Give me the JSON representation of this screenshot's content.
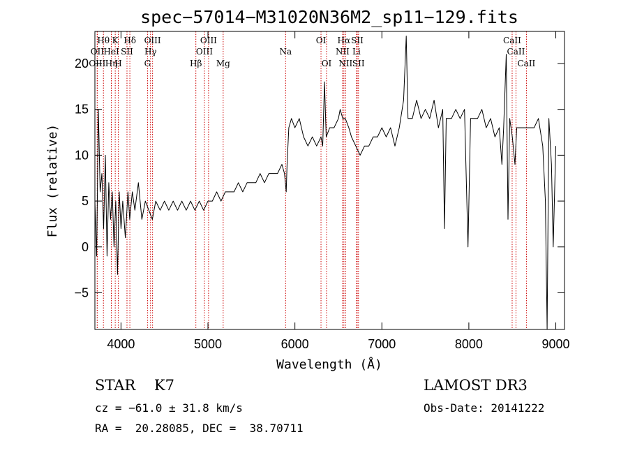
{
  "chart_data": {
    "type": "line",
    "title": "spec−57014−M31020N36M2_sp11−129.fits",
    "xlabel": "Wavelength (Å)",
    "ylabel": "Flux (relative)",
    "xlim": [
      3700,
      9100
    ],
    "ylim": [
      -9,
      23.5
    ],
    "x_ticks": [
      {
        "value": 4000,
        "label": "4000"
      },
      {
        "value": 5000,
        "label": "5000"
      },
      {
        "value": 6000,
        "label": "6000"
      },
      {
        "value": 7000,
        "label": "7000"
      },
      {
        "value": 8000,
        "label": "8000"
      },
      {
        "value": 9000,
        "label": "9000"
      }
    ],
    "y_ticks": [
      {
        "value": -5,
        "label": "−5"
      },
      {
        "value": 0,
        "label": "0"
      },
      {
        "value": 5,
        "label": "5"
      },
      {
        "value": 10,
        "label": "10"
      },
      {
        "value": 15,
        "label": "15"
      },
      {
        "value": 20,
        "label": "20"
      }
    ],
    "series": [
      {
        "name": "flux",
        "points": [
          [
            3700,
            5
          ],
          [
            3720,
            -1
          ],
          [
            3740,
            15
          ],
          [
            3760,
            6
          ],
          [
            3780,
            8
          ],
          [
            3800,
            2
          ],
          [
            3820,
            10
          ],
          [
            3840,
            -1
          ],
          [
            3860,
            7
          ],
          [
            3880,
            3
          ],
          [
            3900,
            6
          ],
          [
            3920,
            0
          ],
          [
            3940,
            5
          ],
          [
            3960,
            -3
          ],
          [
            3980,
            6
          ],
          [
            4000,
            2
          ],
          [
            4020,
            5
          ],
          [
            4050,
            1
          ],
          [
            4080,
            6
          ],
          [
            4100,
            3
          ],
          [
            4130,
            6
          ],
          [
            4160,
            4
          ],
          [
            4200,
            7
          ],
          [
            4240,
            3
          ],
          [
            4280,
            5
          ],
          [
            4320,
            4
          ],
          [
            4360,
            3
          ],
          [
            4400,
            5
          ],
          [
            4450,
            4
          ],
          [
            4500,
            5
          ],
          [
            4550,
            4
          ],
          [
            4600,
            5
          ],
          [
            4650,
            4
          ],
          [
            4700,
            5
          ],
          [
            4750,
            4
          ],
          [
            4800,
            5
          ],
          [
            4850,
            4
          ],
          [
            4900,
            5
          ],
          [
            4950,
            4
          ],
          [
            5000,
            5
          ],
          [
            5050,
            5
          ],
          [
            5100,
            6
          ],
          [
            5150,
            5
          ],
          [
            5200,
            6
          ],
          [
            5250,
            6
          ],
          [
            5300,
            6
          ],
          [
            5350,
            7
          ],
          [
            5400,
            6
          ],
          [
            5450,
            7
          ],
          [
            5500,
            7
          ],
          [
            5550,
            7
          ],
          [
            5600,
            8
          ],
          [
            5650,
            7
          ],
          [
            5700,
            8
          ],
          [
            5750,
            8
          ],
          [
            5800,
            8
          ],
          [
            5850,
            9
          ],
          [
            5880,
            8
          ],
          [
            5900,
            6
          ],
          [
            5910,
            9
          ],
          [
            5930,
            13
          ],
          [
            5960,
            14
          ],
          [
            6000,
            13
          ],
          [
            6050,
            14
          ],
          [
            6100,
            12
          ],
          [
            6150,
            11
          ],
          [
            6200,
            12
          ],
          [
            6250,
            11
          ],
          [
            6300,
            12
          ],
          [
            6320,
            11
          ],
          [
            6340,
            18
          ],
          [
            6360,
            12
          ],
          [
            6400,
            13
          ],
          [
            6450,
            13
          ],
          [
            6500,
            14
          ],
          [
            6520,
            15
          ],
          [
            6550,
            14
          ],
          [
            6580,
            14
          ],
          [
            6620,
            13
          ],
          [
            6650,
            12
          ],
          [
            6700,
            11
          ],
          [
            6750,
            10
          ],
          [
            6800,
            11
          ],
          [
            6850,
            11
          ],
          [
            6900,
            12
          ],
          [
            6950,
            12
          ],
          [
            7000,
            13
          ],
          [
            7050,
            12
          ],
          [
            7100,
            13
          ],
          [
            7150,
            11
          ],
          [
            7200,
            13
          ],
          [
            7250,
            16
          ],
          [
            7280,
            23
          ],
          [
            7300,
            14
          ],
          [
            7350,
            14
          ],
          [
            7400,
            16
          ],
          [
            7450,
            14
          ],
          [
            7500,
            15
          ],
          [
            7550,
            14
          ],
          [
            7600,
            16
          ],
          [
            7650,
            13
          ],
          [
            7700,
            15
          ],
          [
            7720,
            2
          ],
          [
            7740,
            14
          ],
          [
            7800,
            14
          ],
          [
            7850,
            15
          ],
          [
            7900,
            14
          ],
          [
            7950,
            15
          ],
          [
            7990,
            0
          ],
          [
            8020,
            14
          ],
          [
            8100,
            14
          ],
          [
            8150,
            15
          ],
          [
            8200,
            13
          ],
          [
            8250,
            14
          ],
          [
            8300,
            12
          ],
          [
            8350,
            13
          ],
          [
            8380,
            9
          ],
          [
            8400,
            13
          ],
          [
            8430,
            21
          ],
          [
            8450,
            3
          ],
          [
            8470,
            14
          ],
          [
            8500,
            12
          ],
          [
            8530,
            9
          ],
          [
            8550,
            13
          ],
          [
            8600,
            13
          ],
          [
            8650,
            13
          ],
          [
            8700,
            13
          ],
          [
            8750,
            13
          ],
          [
            8800,
            14
          ],
          [
            8850,
            11
          ],
          [
            8880,
            5
          ],
          [
            8900,
            -9
          ],
          [
            8920,
            14
          ],
          [
            8950,
            9
          ],
          [
            8970,
            0
          ],
          [
            9000,
            11
          ]
        ]
      }
    ],
    "spectral_lines": [
      {
        "label": "Hθ",
        "wavelength": 3798,
        "row": 0
      },
      {
        "label": "OII",
        "wavelength": 3727,
        "row": 1
      },
      {
        "label": "OIII",
        "wavelength": 3727,
        "row": 2
      },
      {
        "label": "K",
        "wavelength": 3934,
        "row": 0
      },
      {
        "label": "HeI",
        "wavelength": 3889,
        "row": 1
      },
      {
        "label": "Hη",
        "wavelength": 3889,
        "row": 2
      },
      {
        "label": "SII",
        "wavelength": 4069,
        "row": 1
      },
      {
        "label": "H",
        "wavelength": 3969,
        "row": 2
      },
      {
        "label": "Hδ",
        "wavelength": 4102,
        "row": 0
      },
      {
        "label": "OIII",
        "wavelength": 4363,
        "row": 0
      },
      {
        "label": "Hγ",
        "wavelength": 4340,
        "row": 1
      },
      {
        "label": "G",
        "wavelength": 4305,
        "row": 2
      },
      {
        "label": "Hβ",
        "wavelength": 4861,
        "row": 2
      },
      {
        "label": "OIII",
        "wavelength": 5007,
        "row": 0
      },
      {
        "label": "OIII",
        "wavelength": 4959,
        "row": 1
      },
      {
        "label": "Mg",
        "wavelength": 5175,
        "row": 2
      },
      {
        "label": "Na",
        "wavelength": 5893,
        "row": 1
      },
      {
        "label": "OI",
        "wavelength": 6300,
        "row": 0
      },
      {
        "label": "OI",
        "wavelength": 6364,
        "row": 2
      },
      {
        "label": "Hα",
        "wavelength": 6563,
        "row": 0
      },
      {
        "label": "SII",
        "wavelength": 6717,
        "row": 0
      },
      {
        "label": "NII",
        "wavelength": 6548,
        "row": 1
      },
      {
        "label": "Li",
        "wavelength": 6708,
        "row": 1
      },
      {
        "label": "NII",
        "wavelength": 6583,
        "row": 2
      },
      {
        "label": "SII",
        "wavelength": 6731,
        "row": 2
      },
      {
        "label": "CaII",
        "wavelength": 8498,
        "row": 0
      },
      {
        "label": "CaII",
        "wavelength": 8542,
        "row": 1
      },
      {
        "label": "CaII",
        "wavelength": 8662,
        "row": 2
      }
    ],
    "colors": {
      "line": "#000000",
      "marker": "#cc0000",
      "axis": "#000000"
    }
  },
  "info": {
    "class_line": "STAR    K7",
    "cz_line": "cz = −61.0 ± 31.8 km/s",
    "radec_line": "RA =  20.28085, DEC =  38.70711",
    "survey": "LAMOST DR3",
    "obs_date": "Obs-Date: 20141222"
  }
}
